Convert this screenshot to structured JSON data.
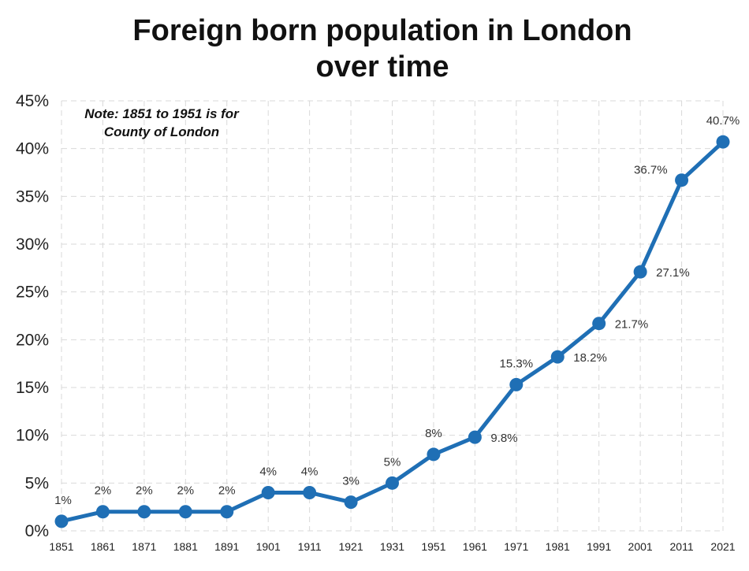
{
  "chart_data": {
    "type": "line",
    "title": "Foreign born population in London\nover time",
    "note": "Note: 1851 to 1951 is for\nCounty of London",
    "x": [
      "1851",
      "1861",
      "1871",
      "1881",
      "1891",
      "1901",
      "1911",
      "1921",
      "1931",
      "1951",
      "1961",
      "1971",
      "1981",
      "1991",
      "2001",
      "2011",
      "2021"
    ],
    "values": [
      1,
      2,
      2,
      2,
      2,
      4,
      4,
      3,
      5,
      8,
      9.8,
      15.3,
      18.2,
      21.7,
      27.1,
      36.7,
      40.7
    ],
    "data_labels": [
      "1%",
      "2%",
      "2%",
      "2%",
      "2%",
      "4%",
      "4%",
      "3%",
      "5%",
      "8%",
      "9.8%",
      "15.3%",
      "18.2%",
      "21.7%",
      "27.1%",
      "36.7%",
      "40.7%"
    ],
    "y_ticks": [
      "0%",
      "5%",
      "10%",
      "15%",
      "20%",
      "25%",
      "30%",
      "35%",
      "40%",
      "45%"
    ],
    "ylim": [
      0,
      45
    ],
    "xlabel": "",
    "ylabel": "",
    "grid": true,
    "colors": {
      "line": "#1f6fb5",
      "grid": "#d9d9d9"
    }
  }
}
